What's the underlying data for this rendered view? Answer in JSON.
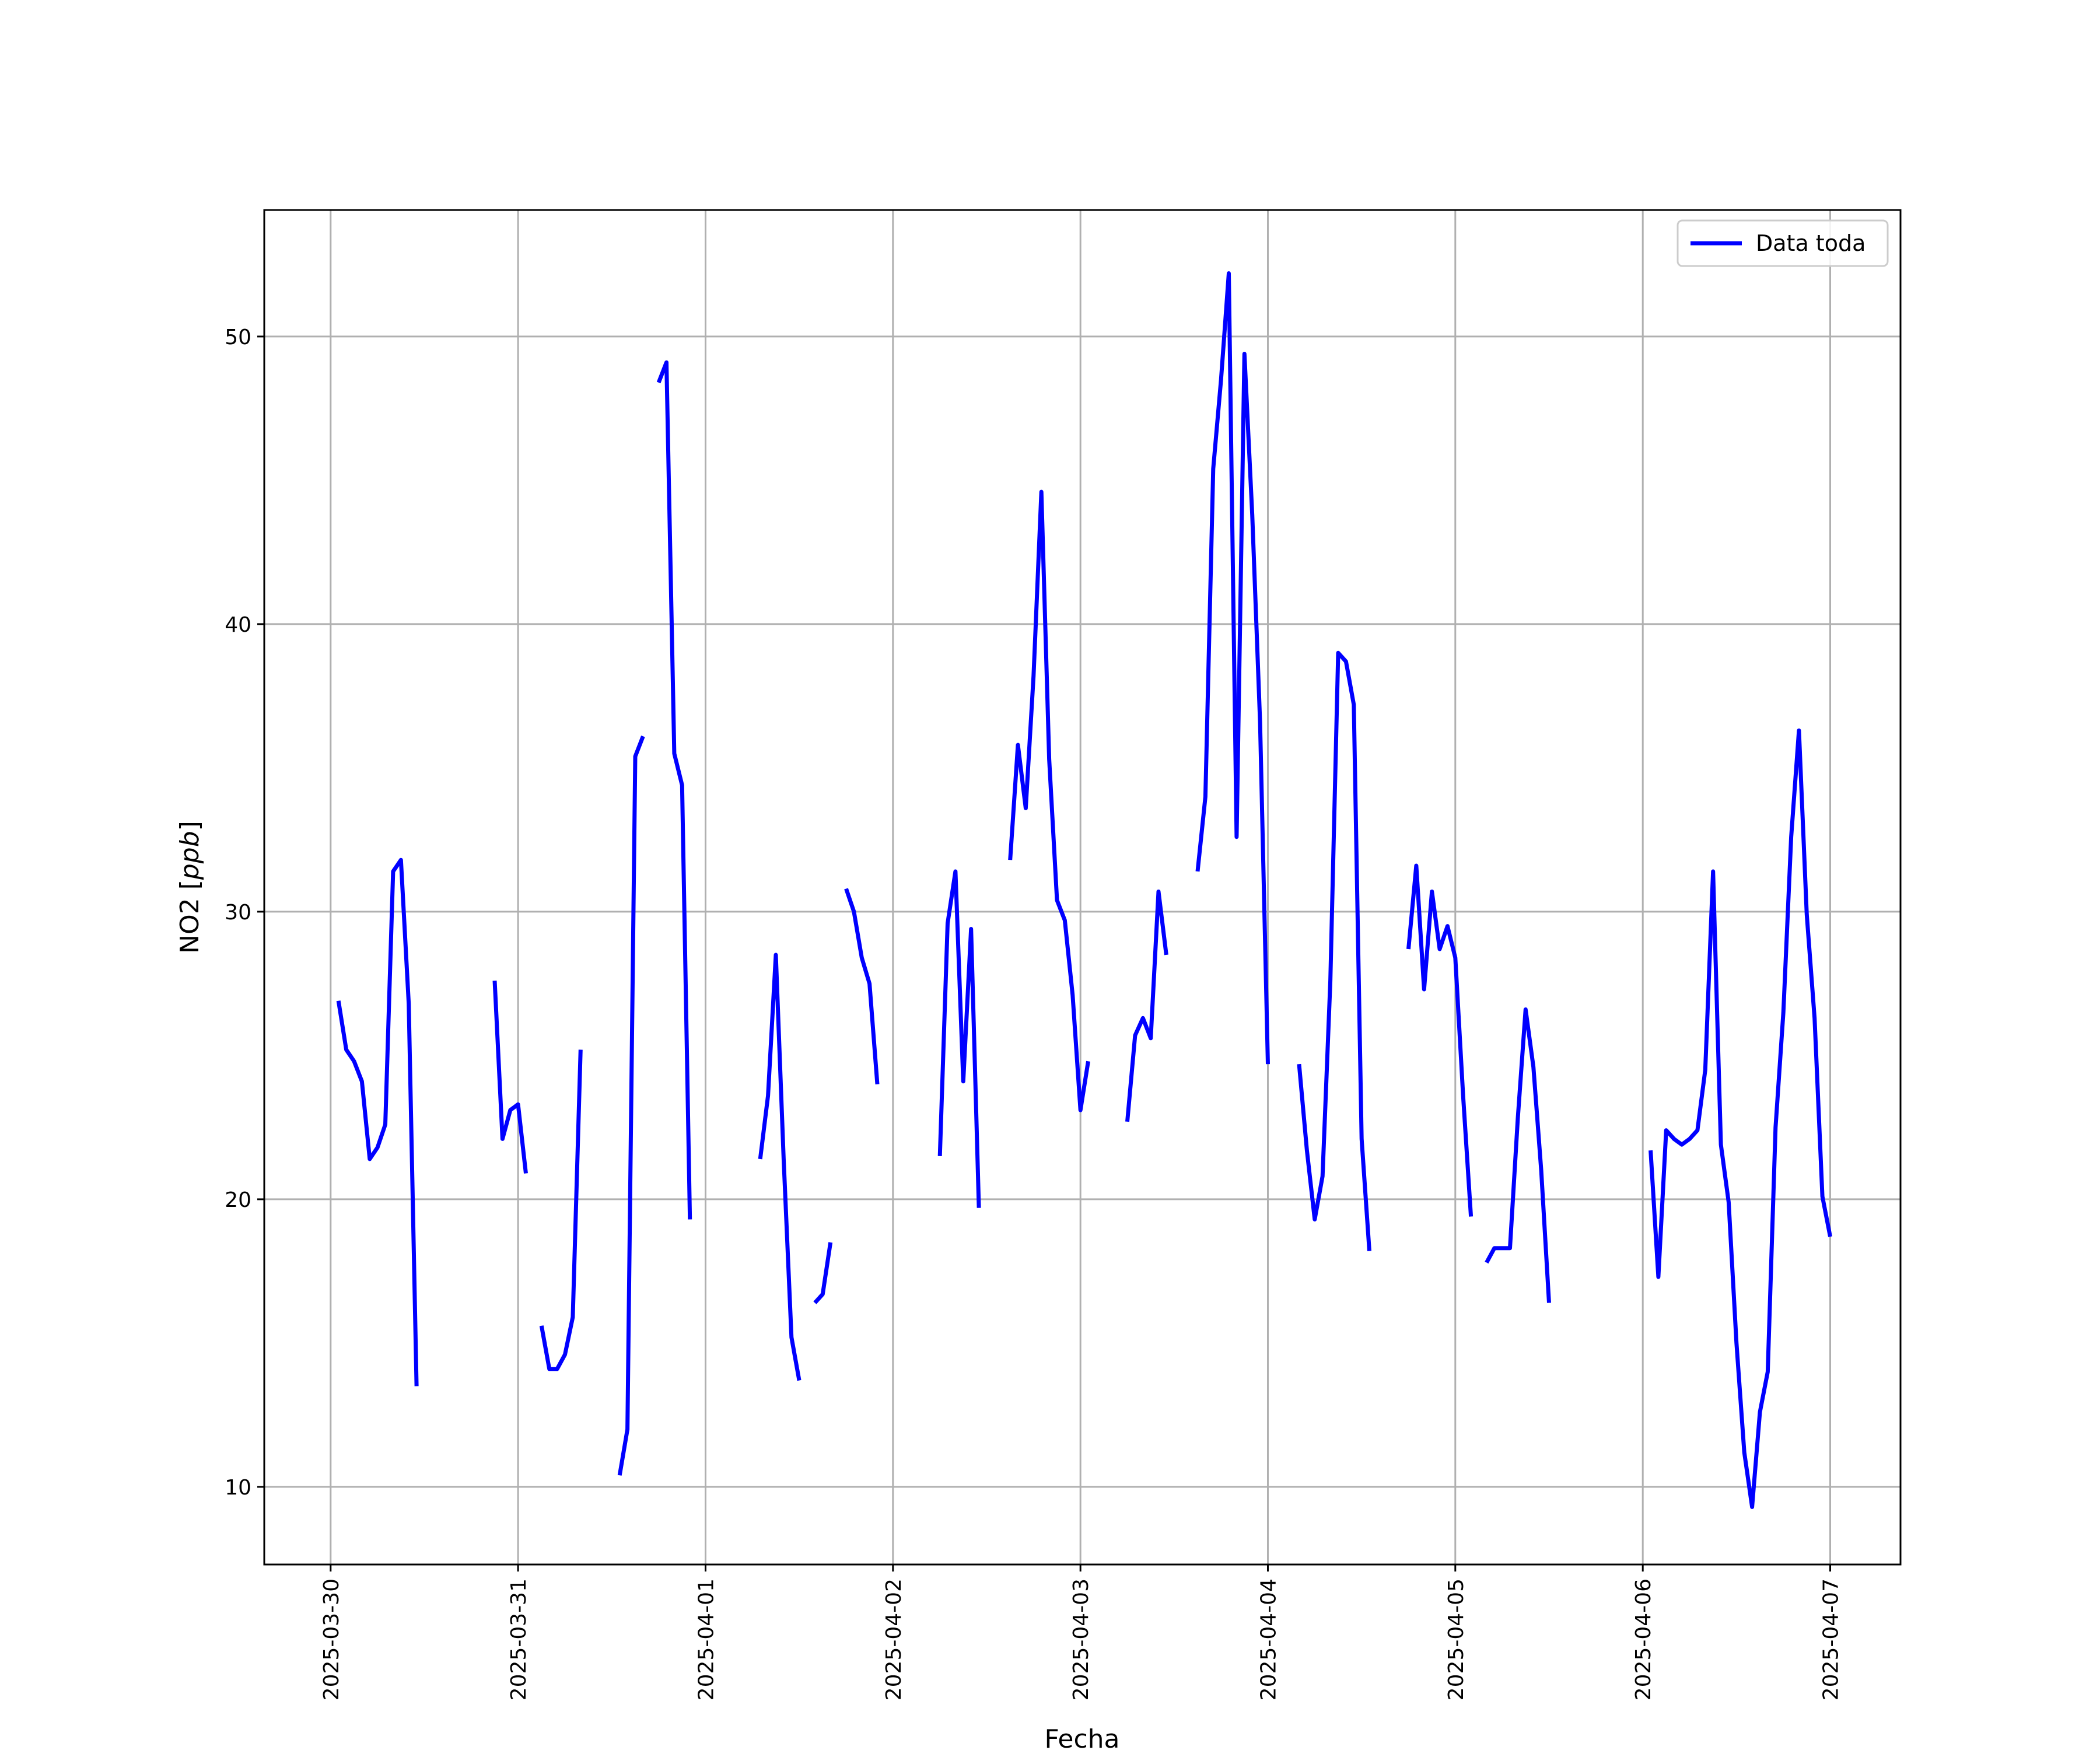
{
  "chart_data": {
    "type": "line",
    "title": "",
    "xlabel": "Fecha",
    "ylabel": "NO2 [ppb]",
    "ylabel_parts": {
      "prefix": "NO2 [",
      "unit": "ppb",
      "suffix": "]"
    },
    "xlim": [
      "2025-03-29 15:30",
      "2025-04-07 09:00"
    ],
    "ylim": [
      7.3,
      54.4
    ],
    "x_ticks": [
      "2025-03-30",
      "2025-03-31",
      "2025-04-01",
      "2025-04-02",
      "2025-04-03",
      "2025-04-04",
      "2025-04-05",
      "2025-04-06",
      "2025-04-07"
    ],
    "y_ticks": [
      10,
      20,
      30,
      40,
      50
    ],
    "grid": true,
    "legend_position": "upper right",
    "colors": {
      "series": "#0000ff",
      "grid": "#b0b0b0"
    },
    "series": [
      {
        "name": "Data toda",
        "segments": [
          [
            [
              "2025-03-30 01:00",
              26.9
            ],
            [
              "2025-03-30 02:00",
              25.2
            ],
            [
              "2025-03-30 03:00",
              24.8
            ],
            [
              "2025-03-30 04:00",
              24.1
            ],
            [
              "2025-03-30 05:00",
              21.4
            ],
            [
              "2025-03-30 06:00",
              21.8
            ],
            [
              "2025-03-30 07:00",
              22.6
            ],
            [
              "2025-03-30 08:00",
              31.4
            ],
            [
              "2025-03-30 09:00",
              31.8
            ],
            [
              "2025-03-30 10:00",
              26.8
            ],
            [
              "2025-03-30 11:00",
              13.5
            ]
          ],
          [
            [
              "2025-03-30 21:00",
              27.6
            ],
            [
              "2025-03-30 22:00",
              22.1
            ],
            [
              "2025-03-30 23:00",
              23.1
            ],
            [
              "2025-03-31 00:00",
              23.3
            ],
            [
              "2025-03-31 01:00",
              20.9
            ]
          ],
          [
            [
              "2025-03-31 03:00",
              15.6
            ],
            [
              "2025-03-31 04:00",
              14.1
            ],
            [
              "2025-03-31 05:00",
              14.1
            ],
            [
              "2025-03-31 06:00",
              14.6
            ],
            [
              "2025-03-31 07:00",
              15.9
            ],
            [
              "2025-03-31 08:00",
              25.2
            ]
          ],
          [
            [
              "2025-03-31 13:00",
              10.4
            ],
            [
              "2025-03-31 14:00",
              12.0
            ],
            [
              "2025-03-31 15:00",
              35.4
            ],
            [
              "2025-03-31 16:00",
              36.1
            ]
          ],
          [
            [
              "2025-03-31 18:00",
              48.4
            ],
            [
              "2025-03-31 19:00",
              49.1
            ],
            [
              "2025-03-31 20:00",
              35.5
            ],
            [
              "2025-03-31 21:00",
              34.4
            ],
            [
              "2025-03-31 22:00",
              19.3
            ]
          ],
          [
            [
              "2025-04-01 07:00",
              21.4
            ],
            [
              "2025-04-01 08:00",
              23.6
            ],
            [
              "2025-04-01 09:00",
              28.5
            ],
            [
              "2025-04-01 10:00",
              21.4
            ],
            [
              "2025-04-01 11:00",
              15.2
            ],
            [
              "2025-04-01 12:00",
              13.7
            ]
          ],
          [
            [
              "2025-04-01 14:00",
              16.4
            ],
            [
              "2025-04-01 15:00",
              16.7
            ],
            [
              "2025-04-01 16:00",
              18.5
            ]
          ],
          [
            [
              "2025-04-01 18:00",
              30.8
            ],
            [
              "2025-04-01 19:00",
              30.0
            ],
            [
              "2025-04-01 20:00",
              28.4
            ],
            [
              "2025-04-01 21:00",
              27.5
            ],
            [
              "2025-04-01 22:00",
              24.0
            ]
          ],
          [
            [
              "2025-04-02 06:00",
              21.5
            ],
            [
              "2025-04-02 07:00",
              29.6
            ],
            [
              "2025-04-02 08:00",
              31.4
            ],
            [
              "2025-04-02 09:00",
              24.1
            ],
            [
              "2025-04-02 10:00",
              29.4
            ],
            [
              "2025-04-02 11:00",
              19.7
            ]
          ],
          [
            [
              "2025-04-02 15:00",
              31.8
            ],
            [
              "2025-04-02 16:00",
              35.8
            ],
            [
              "2025-04-02 17:00",
              33.6
            ],
            [
              "2025-04-02 18:00",
              38.2
            ],
            [
              "2025-04-02 19:00",
              44.6
            ],
            [
              "2025-04-02 20:00",
              35.3
            ],
            [
              "2025-04-02 21:00",
              30.4
            ],
            [
              "2025-04-02 22:00",
              29.7
            ],
            [
              "2025-04-02 23:00",
              27.1
            ],
            [
              "2025-04-03 00:00",
              23.1
            ],
            [
              "2025-04-03 01:00",
              24.8
            ]
          ],
          [
            [
              "2025-04-03 06:00",
              22.7
            ],
            [
              "2025-04-03 07:00",
              25.7
            ],
            [
              "2025-04-03 08:00",
              26.3
            ],
            [
              "2025-04-03 09:00",
              25.6
            ],
            [
              "2025-04-03 10:00",
              30.7
            ],
            [
              "2025-04-03 11:00",
              28.5
            ]
          ],
          [
            [
              "2025-04-03 15:00",
              31.4
            ],
            [
              "2025-04-03 16:00",
              34.0
            ],
            [
              "2025-04-03 17:00",
              45.4
            ],
            [
              "2025-04-03 18:00",
              48.5
            ],
            [
              "2025-04-03 19:00",
              52.2
            ],
            [
              "2025-04-03 20:00",
              32.6
            ],
            [
              "2025-04-03 21:00",
              49.4
            ],
            [
              "2025-04-03 22:00",
              43.8
            ],
            [
              "2025-04-03 23:00",
              36.6
            ],
            [
              "2025-04-04 00:00",
              24.7
            ]
          ],
          [
            [
              "2025-04-04 04:00",
              24.7
            ],
            [
              "2025-04-04 05:00",
              21.7
            ],
            [
              "2025-04-04 06:00",
              19.3
            ],
            [
              "2025-04-04 07:00",
              20.8
            ],
            [
              "2025-04-04 08:00",
              27.6
            ],
            [
              "2025-04-04 09:00",
              39.0
            ],
            [
              "2025-04-04 10:00",
              38.7
            ],
            [
              "2025-04-04 11:00",
              37.2
            ],
            [
              "2025-04-04 12:00",
              22.1
            ],
            [
              "2025-04-04 13:00",
              18.2
            ]
          ],
          [
            [
              "2025-04-04 18:00",
              28.7
            ],
            [
              "2025-04-04 19:00",
              31.6
            ],
            [
              "2025-04-04 20:00",
              27.3
            ],
            [
              "2025-04-04 21:00",
              30.7
            ],
            [
              "2025-04-04 22:00",
              28.7
            ],
            [
              "2025-04-04 23:00",
              29.5
            ],
            [
              "2025-04-05 00:00",
              28.4
            ],
            [
              "2025-04-05 01:00",
              23.6
            ],
            [
              "2025-04-05 02:00",
              19.4
            ]
          ],
          [
            [
              "2025-04-05 04:00",
              17.8
            ],
            [
              "2025-04-05 05:00",
              18.3
            ],
            [
              "2025-04-05 06:00",
              18.3
            ],
            [
              "2025-04-05 07:00",
              18.3
            ],
            [
              "2025-04-05 08:00",
              22.8
            ],
            [
              "2025-04-05 09:00",
              26.6
            ],
            [
              "2025-04-05 10:00",
              24.6
            ],
            [
              "2025-04-05 11:00",
              21.0
            ],
            [
              "2025-04-05 12:00",
              16.4
            ]
          ],
          [
            [
              "2025-04-06 01:00",
              21.7
            ],
            [
              "2025-04-06 02:00",
              17.3
            ],
            [
              "2025-04-06 03:00",
              22.4
            ],
            [
              "2025-04-06 04:00",
              22.1
            ],
            [
              "2025-04-06 05:00",
              21.9
            ],
            [
              "2025-04-06 06:00",
              22.1
            ],
            [
              "2025-04-06 07:00",
              22.4
            ],
            [
              "2025-04-06 08:00",
              24.5
            ],
            [
              "2025-04-06 09:00",
              31.4
            ],
            [
              "2025-04-06 10:00",
              21.9
            ],
            [
              "2025-04-06 11:00",
              19.9
            ],
            [
              "2025-04-06 12:00",
              15.0
            ],
            [
              "2025-04-06 13:00",
              11.2
            ],
            [
              "2025-04-06 14:00",
              9.3
            ],
            [
              "2025-04-06 15:00",
              12.6
            ],
            [
              "2025-04-06 16:00",
              14.0
            ],
            [
              "2025-04-06 17:00",
              22.5
            ],
            [
              "2025-04-06 18:00",
              26.5
            ],
            [
              "2025-04-06 19:00",
              32.6
            ],
            [
              "2025-04-06 20:00",
              36.3
            ],
            [
              "2025-04-06 21:00",
              29.9
            ],
            [
              "2025-04-06 22:00",
              26.3
            ],
            [
              "2025-04-06 23:00",
              20.1
            ],
            [
              "2025-04-07 00:00",
              18.7
            ]
          ]
        ]
      }
    ]
  }
}
